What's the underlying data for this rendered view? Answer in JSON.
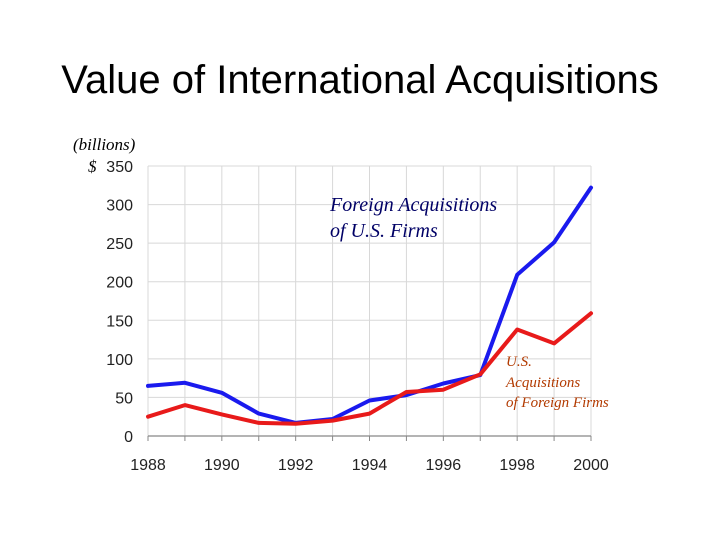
{
  "chart_data": {
    "type": "line",
    "title": "Value of International Acquisitions",
    "ylabel_lines": [
      "(billions)",
      "$"
    ],
    "x": [
      1988,
      1989,
      1990,
      1991,
      1992,
      1993,
      1994,
      1995,
      1996,
      1997,
      1998,
      1999,
      2000
    ],
    "x_ticks": [
      "1988",
      "1990",
      "1992",
      "1994",
      "1996",
      "1998",
      "2000"
    ],
    "y_ticks": [
      "350",
      "300",
      "250",
      "200",
      "150",
      "100",
      "50",
      "0"
    ],
    "ylim": [
      0,
      350
    ],
    "grid": true,
    "series": [
      {
        "name": "Foreign Acquisitions of U.S. Firms",
        "label_lines": [
          "Foreign Acquisitions",
          "of U.S. Firms"
        ],
        "color": "#1a1aee",
        "values": [
          65,
          69,
          56,
          29,
          17,
          22,
          46,
          53,
          68,
          79,
          209,
          251,
          322
        ]
      },
      {
        "name": "U.S. Acquisitions of Foreign Firms",
        "label_lines": [
          "U.S.",
          "Acquisitions",
          "of Foreign Firms"
        ],
        "color": "#e81a1a",
        "values": [
          25,
          40,
          28,
          17,
          16,
          20,
          29,
          57,
          60,
          80,
          138,
          120,
          159
        ]
      }
    ]
  }
}
